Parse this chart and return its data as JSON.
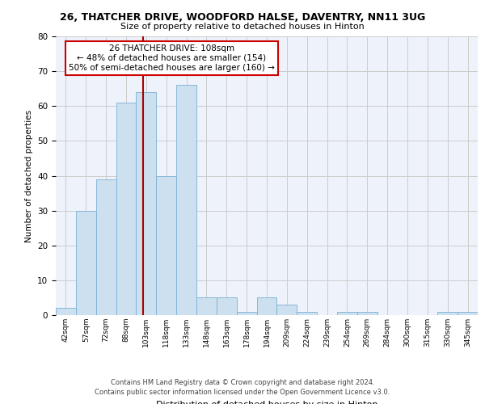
{
  "title1": "26, THATCHER DRIVE, WOODFORD HALSE, DAVENTRY, NN11 3UG",
  "title2": "Size of property relative to detached houses in Hinton",
  "xlabel": "Distribution of detached houses by size in Hinton",
  "ylabel": "Number of detached properties",
  "bar_labels": [
    "42sqm",
    "57sqm",
    "72sqm",
    "88sqm",
    "103sqm",
    "118sqm",
    "133sqm",
    "148sqm",
    "163sqm",
    "178sqm",
    "194sqm",
    "209sqm",
    "224sqm",
    "239sqm",
    "254sqm",
    "269sqm",
    "284sqm",
    "300sqm",
    "315sqm",
    "330sqm",
    "345sqm"
  ],
  "bar_values": [
    2,
    30,
    39,
    61,
    64,
    40,
    66,
    5,
    5,
    1,
    5,
    3,
    1,
    0,
    1,
    1,
    0,
    0,
    0,
    1,
    1
  ],
  "bar_color": "#cce0f0",
  "bar_edgecolor": "#7ab0d4",
  "annotation_text_line1": "26 THATCHER DRIVE: 108sqm",
  "annotation_text_line2": "← 48% of detached houses are smaller (154)",
  "annotation_text_line3": "50% of semi-detached houses are larger (160) →",
  "annotation_box_color": "#ffffff",
  "annotation_box_edgecolor": "#cc0000",
  "vline_color": "#aa0000",
  "ylim": [
    0,
    80
  ],
  "yticks": [
    0,
    10,
    20,
    30,
    40,
    50,
    60,
    70,
    80
  ],
  "grid_color": "#cccccc",
  "bg_color": "#eef2fb",
  "footer1": "Contains HM Land Registry data © Crown copyright and database right 2024.",
  "footer2": "Contains public sector information licensed under the Open Government Licence v3.0."
}
